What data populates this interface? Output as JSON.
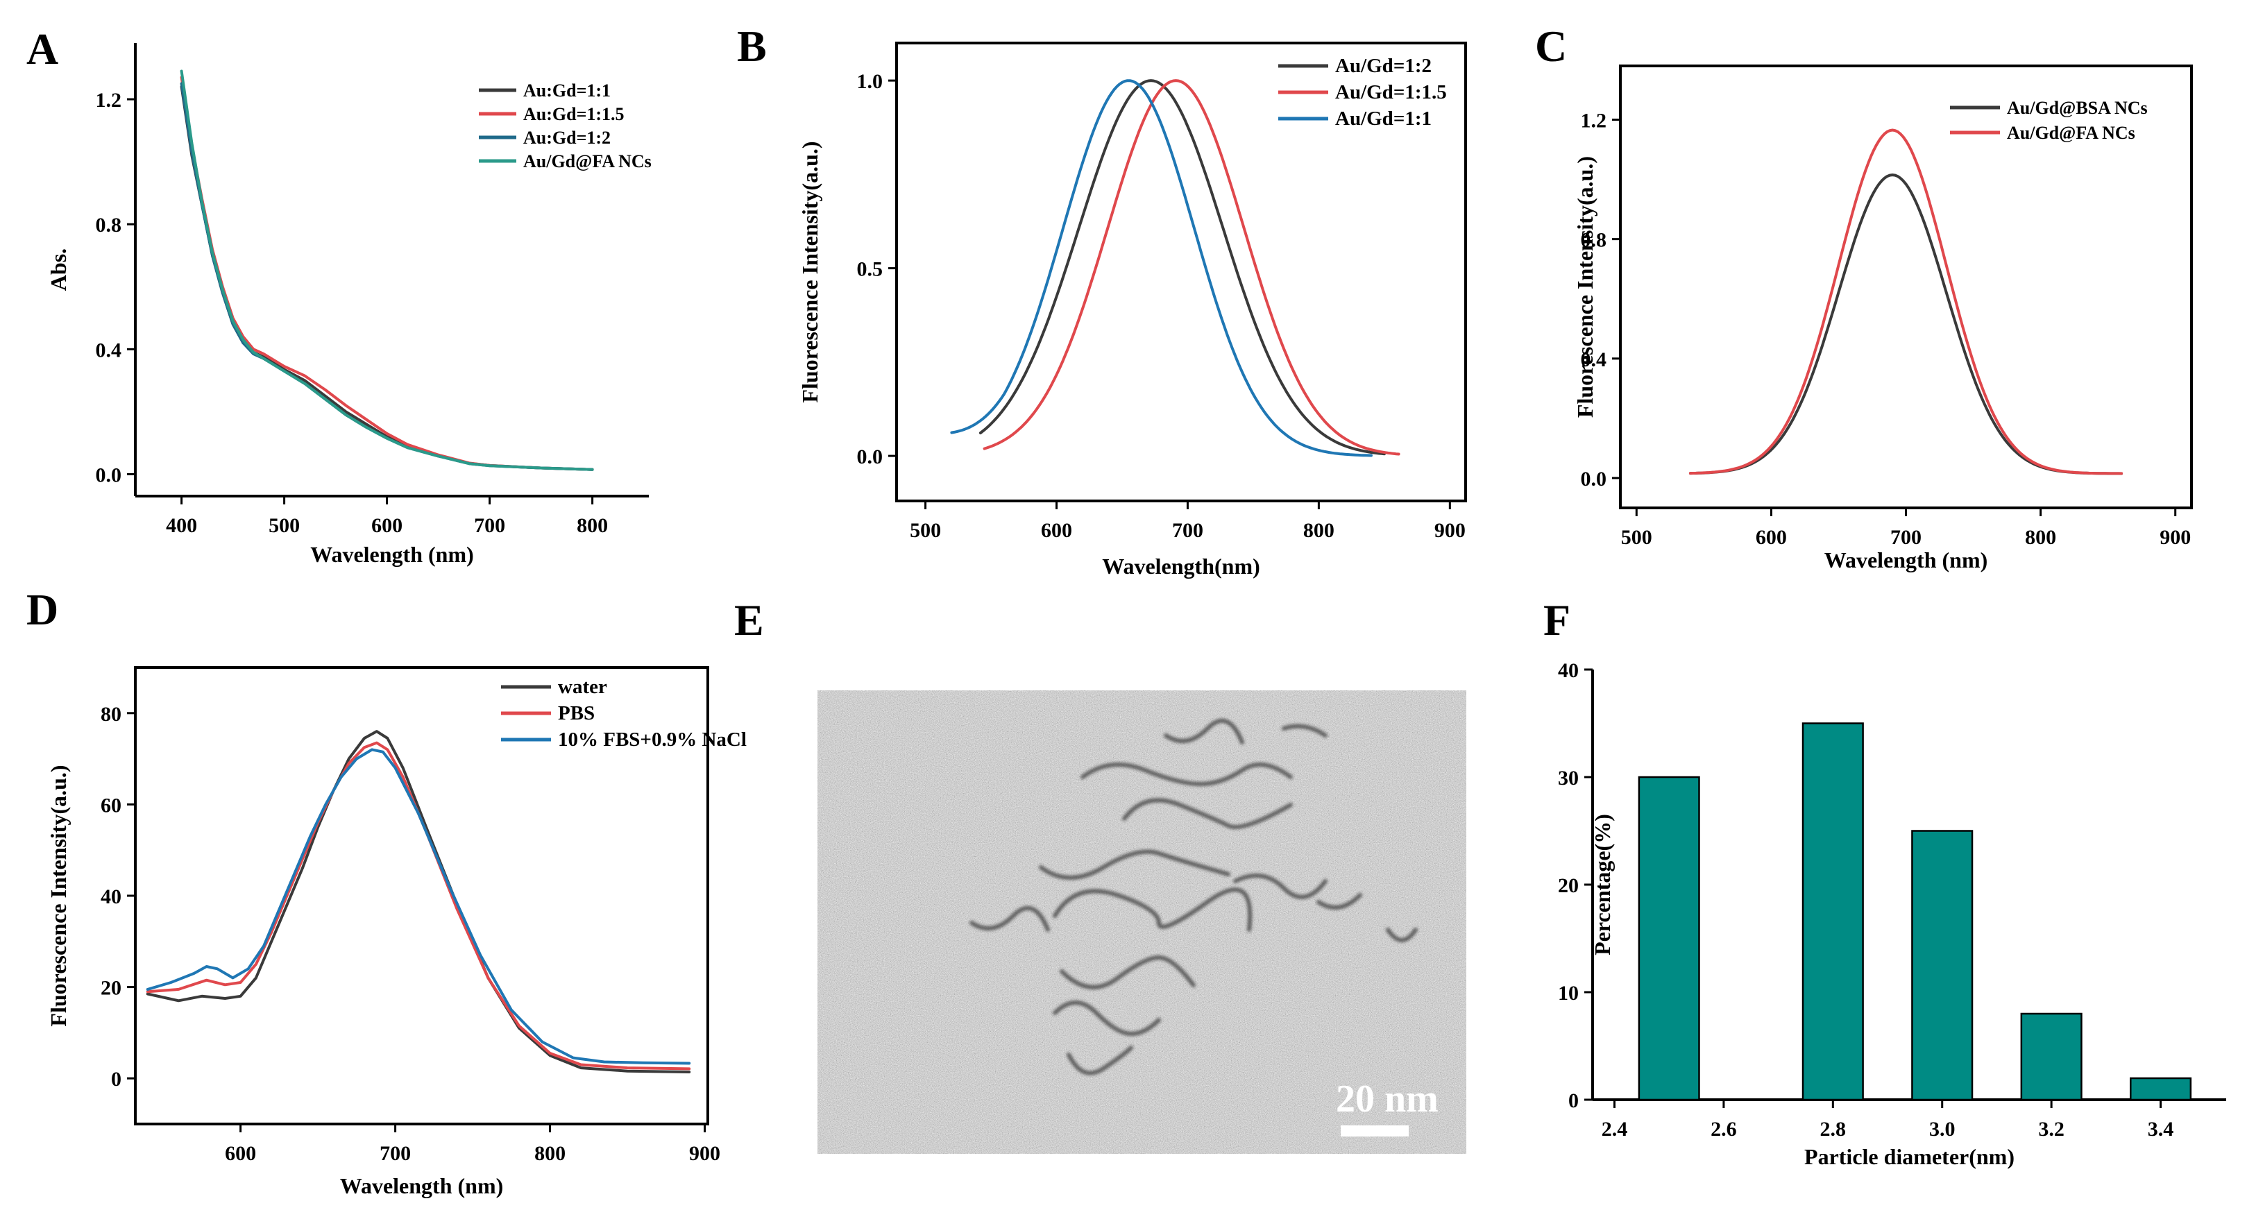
{
  "figure": {
    "panel_letters": [
      "A",
      "B",
      "C",
      "D",
      "E",
      "F"
    ],
    "colors": {
      "black": "#3a3a3a",
      "red": "#e0484c",
      "blue": "#1f77b4",
      "teal": "#2a9a8a",
      "bar": "#008b84"
    }
  },
  "chart_data": [
    {
      "panel": "A",
      "type": "line",
      "xlabel": "Wavelength (nm)",
      "ylabel": "Abs.",
      "xlim": [
        355,
        855
      ],
      "ylim": [
        -0.07,
        1.38
      ],
      "xticks": [
        400,
        500,
        600,
        700,
        800
      ],
      "yticks": [
        0.0,
        0.4,
        0.8,
        1.2
      ],
      "ytick_labels": [
        "0.0",
        "0.4",
        "0.8",
        "1.2"
      ],
      "legend": {
        "placement": "top-right"
      },
      "series": [
        {
          "name": "Au:Gd=1:1",
          "color": "#3a3a3a",
          "points": [
            [
              400,
              1.24
            ],
            [
              410,
              1.02
            ],
            [
              420,
              0.86
            ],
            [
              430,
              0.7
            ],
            [
              440,
              0.58
            ],
            [
              450,
              0.48
            ],
            [
              460,
              0.42
            ],
            [
              470,
              0.39
            ],
            [
              480,
              0.375
            ],
            [
              500,
              0.335
            ],
            [
              520,
              0.3
            ],
            [
              540,
              0.25
            ],
            [
              560,
              0.2
            ],
            [
              580,
              0.16
            ],
            [
              600,
              0.12
            ],
            [
              620,
              0.09
            ],
            [
              650,
              0.06
            ],
            [
              680,
              0.035
            ],
            [
              700,
              0.028
            ],
            [
              750,
              0.02
            ],
            [
              800,
              0.015
            ]
          ]
        },
        {
          "name": "Au:Gd=1:1.5",
          "color": "#e0484c",
          "points": [
            [
              400,
              1.27
            ],
            [
              410,
              1.05
            ],
            [
              420,
              0.88
            ],
            [
              430,
              0.72
            ],
            [
              440,
              0.6
            ],
            [
              450,
              0.5
            ],
            [
              460,
              0.44
            ],
            [
              470,
              0.4
            ],
            [
              480,
              0.385
            ],
            [
              500,
              0.345
            ],
            [
              520,
              0.315
            ],
            [
              540,
              0.27
            ],
            [
              560,
              0.22
            ],
            [
              580,
              0.175
            ],
            [
              600,
              0.13
            ],
            [
              620,
              0.095
            ],
            [
              650,
              0.062
            ],
            [
              680,
              0.036
            ],
            [
              700,
              0.028
            ],
            [
              750,
              0.02
            ],
            [
              800,
              0.015
            ]
          ]
        },
        {
          "name": "Au:Gd=1:2",
          "color": "#1f6a8a",
          "points": [
            [
              400,
              1.25
            ],
            [
              410,
              1.03
            ],
            [
              420,
              0.86
            ],
            [
              430,
              0.7
            ],
            [
              440,
              0.58
            ],
            [
              450,
              0.48
            ],
            [
              460,
              0.42
            ],
            [
              470,
              0.385
            ],
            [
              480,
              0.37
            ],
            [
              500,
              0.33
            ],
            [
              520,
              0.29
            ],
            [
              540,
              0.24
            ],
            [
              560,
              0.19
            ],
            [
              580,
              0.15
            ],
            [
              600,
              0.115
            ],
            [
              620,
              0.085
            ],
            [
              650,
              0.058
            ],
            [
              680,
              0.034
            ],
            [
              700,
              0.027
            ],
            [
              750,
              0.02
            ],
            [
              800,
              0.015
            ]
          ]
        },
        {
          "name": "Au/Gd@FA NCs",
          "color": "#2a9a8a",
          "points": [
            [
              400,
              1.29
            ],
            [
              410,
              1.06
            ],
            [
              420,
              0.87
            ],
            [
              430,
              0.71
            ],
            [
              440,
              0.59
            ],
            [
              450,
              0.49
            ],
            [
              460,
              0.43
            ],
            [
              470,
              0.39
            ],
            [
              480,
              0.37
            ],
            [
              500,
              0.33
            ],
            [
              520,
              0.29
            ],
            [
              540,
              0.24
            ],
            [
              560,
              0.19
            ],
            [
              580,
              0.15
            ],
            [
              600,
              0.115
            ],
            [
              620,
              0.085
            ],
            [
              650,
              0.058
            ],
            [
              680,
              0.034
            ],
            [
              700,
              0.027
            ],
            [
              750,
              0.02
            ],
            [
              800,
              0.015
            ]
          ]
        }
      ]
    },
    {
      "panel": "B",
      "type": "line",
      "xlabel": "Wavelength(nm)",
      "ylabel": "Fluorescence Intensity(a.u.)",
      "xlim": [
        478,
        912
      ],
      "ylim": [
        -0.12,
        1.1
      ],
      "xticks": [
        500,
        600,
        700,
        800,
        900
      ],
      "yticks": [
        0.0,
        0.5,
        1.0
      ],
      "ytick_labels": [
        "0.0",
        "0.5",
        "1.0"
      ],
      "legend": {
        "placement": "top-right"
      },
      "series": [
        {
          "name": "Au/Gd=1:2",
          "color": "#3a3a3a",
          "peak": 672,
          "sigma": 55,
          "x_range": [
            542,
            850
          ]
        },
        {
          "name": "Au/Gd=1:1.5",
          "color": "#e0484c",
          "peak": 691,
          "sigma": 52,
          "x_range": [
            545,
            862
          ]
        },
        {
          "name": "Au/Gd=1:1",
          "color": "#1f77b4",
          "peak": 655,
          "sigma": 50,
          "x_range": [
            520,
            840
          ]
        }
      ]
    },
    {
      "panel": "C",
      "type": "line",
      "xlabel": "Wavelength (nm)",
      "ylabel": "Fluorescence Intensity(a.u.)",
      "xlim": [
        488,
        912
      ],
      "ylim": [
        -0.1,
        1.38
      ],
      "xticks": [
        500,
        600,
        700,
        800,
        900
      ],
      "yticks": [
        0.0,
        0.4,
        0.8,
        1.2
      ],
      "ytick_labels": [
        "0.0",
        "0.4",
        "0.8",
        "1.2"
      ],
      "legend": {
        "placement": "top-right"
      },
      "series": [
        {
          "name": "Au/Gd@BSA NCs",
          "color": "#3a3a3a",
          "peak_x": 690,
          "peak_y": 1.0,
          "sigma": 40,
          "x_range": [
            540,
            860
          ]
        },
        {
          "name": "Au/Gd@FA NCs",
          "color": "#e0484c",
          "peak_x": 690,
          "peak_y": 1.15,
          "sigma": 40,
          "x_range": [
            540,
            860
          ]
        }
      ]
    },
    {
      "panel": "D",
      "type": "line",
      "xlabel": "Wavelength (nm)",
      "ylabel": "Fluorescence Intensity(a.u.)",
      "xlim": [
        532,
        902
      ],
      "ylim": [
        -10,
        90
      ],
      "xticks": [
        600,
        700,
        800,
        900
      ],
      "yticks": [
        0,
        20,
        40,
        60,
        80
      ],
      "ytick_labels": [
        "0",
        "20",
        "40",
        "60",
        "80"
      ],
      "legend": {
        "placement": "top-right"
      },
      "series": [
        {
          "name": "water",
          "color": "#3a3a3a",
          "points": [
            [
              540,
              18.5
            ],
            [
              560,
              17
            ],
            [
              575,
              18
            ],
            [
              590,
              17.5
            ],
            [
              600,
              18
            ],
            [
              610,
              22
            ],
            [
              620,
              30
            ],
            [
              630,
              38
            ],
            [
              640,
              46
            ],
            [
              650,
              55
            ],
            [
              660,
              63
            ],
            [
              670,
              70
            ],
            [
              680,
              74.5
            ],
            [
              688,
              76
            ],
            [
              695,
              74.5
            ],
            [
              705,
              68
            ],
            [
              720,
              55
            ],
            [
              740,
              38
            ],
            [
              760,
              22
            ],
            [
              780,
              11
            ],
            [
              800,
              5
            ],
            [
              820,
              2.3
            ],
            [
              850,
              1.6
            ],
            [
              890,
              1.4
            ]
          ]
        },
        {
          "name": "PBS",
          "color": "#e0484c",
          "points": [
            [
              540,
              19
            ],
            [
              560,
              19.5
            ],
            [
              578,
              21.5
            ],
            [
              590,
              20.5
            ],
            [
              600,
              21
            ],
            [
              610,
              25
            ],
            [
              620,
              32
            ],
            [
              630,
              40
            ],
            [
              640,
              48
            ],
            [
              650,
              56
            ],
            [
              660,
              63
            ],
            [
              670,
              69
            ],
            [
              680,
              72.5
            ],
            [
              688,
              73.5
            ],
            [
              695,
              72
            ],
            [
              705,
              66
            ],
            [
              720,
              54
            ],
            [
              740,
              37
            ],
            [
              760,
              22
            ],
            [
              780,
              11.5
            ],
            [
              800,
              5.5
            ],
            [
              820,
              3
            ],
            [
              850,
              2.3
            ],
            [
              890,
              2.1
            ]
          ]
        },
        {
          "name": "10% FBS+0.9% NaCl",
          "color": "#1f77b4",
          "points": [
            [
              540,
              19.5
            ],
            [
              555,
              21
            ],
            [
              570,
              23
            ],
            [
              578,
              24.5
            ],
            [
              585,
              24
            ],
            [
              595,
              22
            ],
            [
              605,
              24
            ],
            [
              615,
              29
            ],
            [
              625,
              37
            ],
            [
              635,
              45
            ],
            [
              645,
              53
            ],
            [
              655,
              60
            ],
            [
              665,
              66
            ],
            [
              675,
              70
            ],
            [
              685,
              72
            ],
            [
              692,
              71.5
            ],
            [
              700,
              68
            ],
            [
              715,
              58
            ],
            [
              735,
              42
            ],
            [
              755,
              27
            ],
            [
              775,
              15
            ],
            [
              795,
              8
            ],
            [
              815,
              4.5
            ],
            [
              835,
              3.6
            ],
            [
              860,
              3.4
            ],
            [
              890,
              3.3
            ]
          ]
        }
      ]
    },
    {
      "panel": "F",
      "type": "bar",
      "xlabel": "Particle diameter(nm)",
      "ylabel": "Percentage(%)",
      "xlim": [
        2.36,
        3.52
      ],
      "ylim": [
        0,
        40
      ],
      "xticks": [
        2.4,
        2.6,
        2.8,
        3.0,
        3.2,
        3.4
      ],
      "xtick_labels": [
        "2.4",
        "2.6",
        "2.8",
        "3.0",
        "3.2",
        "3.4"
      ],
      "yticks": [
        0,
        10,
        20,
        30,
        40
      ],
      "ytick_labels": [
        "0",
        "10",
        "20",
        "30",
        "40"
      ],
      "categories": [
        2.5,
        2.8,
        3.0,
        3.2,
        3.4
      ],
      "values": [
        30,
        35,
        25,
        8,
        2
      ],
      "bar_width": 0.11
    }
  ],
  "panel_e": {
    "scale_bar_label": "20 nm"
  }
}
